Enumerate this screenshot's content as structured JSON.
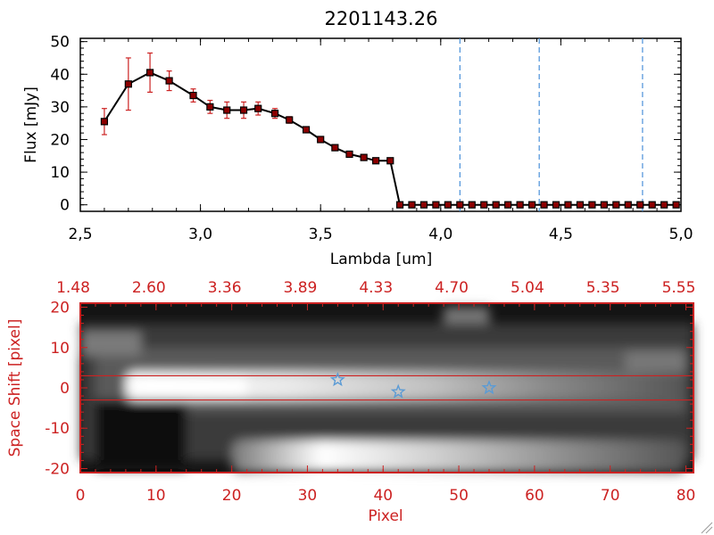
{
  "colors": {
    "frame": "#000000",
    "accent": "#cc2222",
    "line": "#000000",
    "marker": "#8b0000",
    "errorbar": "#cc2222",
    "vline": "#4a90d9",
    "star": "#5b9bd5"
  },
  "chart_data": [
    {
      "type": "line",
      "title": "2201143.26",
      "xlabel": "Lambda [um]",
      "ylabel": "Flux [mJy]",
      "xlim": [
        2.5,
        5.0
      ],
      "ylim": [
        -2,
        51
      ],
      "xticks": [
        2.5,
        3.0,
        3.5,
        4.0,
        4.5,
        5.0
      ],
      "xticklabels": [
        "2,5",
        "3,0",
        "3,5",
        "4,0",
        "4,5",
        "5,0"
      ],
      "yticks": [
        0,
        10,
        20,
        30,
        40,
        50
      ],
      "yticklabels": [
        "0",
        "10",
        "20",
        "30",
        "40",
        "50"
      ],
      "series": [
        {
          "x": [
            2.6,
            2.7,
            2.79,
            2.87,
            2.97,
            3.04,
            3.11,
            3.18,
            3.24,
            3.31,
            3.37,
            3.44,
            3.5,
            3.56,
            3.62,
            3.68,
            3.73,
            3.79,
            3.83,
            3.88,
            3.93,
            3.98,
            4.03,
            4.08,
            4.13,
            4.18,
            4.23,
            4.28,
            4.33,
            4.38,
            4.43,
            4.48,
            4.53,
            4.58,
            4.63,
            4.68,
            4.73,
            4.78,
            4.83,
            4.88,
            4.93,
            4.98
          ],
          "y": [
            25.5,
            37,
            40.5,
            38,
            33.5,
            30,
            29,
            29,
            29.5,
            28,
            26,
            23,
            20,
            17.5,
            15.5,
            14.5,
            13.5,
            13.5,
            0,
            0,
            0,
            0,
            0,
            0,
            0,
            0,
            0,
            0,
            0,
            0,
            0,
            0,
            0,
            0,
            0,
            0,
            0,
            0,
            0,
            0,
            0,
            0
          ],
          "yerr": [
            4,
            8,
            6,
            3,
            2,
            2,
            2.5,
            2.5,
            2,
            1.5,
            1,
            0.5,
            0.5,
            0.5,
            0.5,
            0.3,
            0.3,
            0.3,
            0,
            0,
            0,
            0,
            0,
            0,
            0,
            0,
            0,
            0,
            0,
            0,
            0,
            0,
            0,
            0,
            0,
            0,
            0,
            0,
            0,
            0,
            0,
            0
          ]
        }
      ],
      "vlines": [
        4.08,
        4.41,
        4.84
      ]
    },
    {
      "type": "heatmap",
      "xlabel": "Pixel",
      "ylabel": "Space Shift [pixel]",
      "xlim": [
        0,
        81
      ],
      "ylim": [
        -21,
        21
      ],
      "xticks": [
        0,
        10,
        20,
        30,
        40,
        50,
        60,
        70,
        80
      ],
      "xticklabels": [
        "0",
        "10",
        "20",
        "30",
        "40",
        "50",
        "60",
        "70",
        "80"
      ],
      "yticks": [
        -20,
        -10,
        0,
        10,
        20
      ],
      "yticklabels": [
        "-20",
        "-10",
        "0",
        "10",
        "20"
      ],
      "top_ticklabels": [
        "1.48",
        "2.60",
        "3.36",
        "3.89",
        "4.33",
        "4.70",
        "5.04",
        "5.35",
        "5.55"
      ],
      "hlines": [
        3,
        -3
      ],
      "stars": [
        {
          "x": 34,
          "y": 2
        },
        {
          "x": 42,
          "y": -1
        },
        {
          "x": 54,
          "y": 0
        }
      ]
    }
  ]
}
